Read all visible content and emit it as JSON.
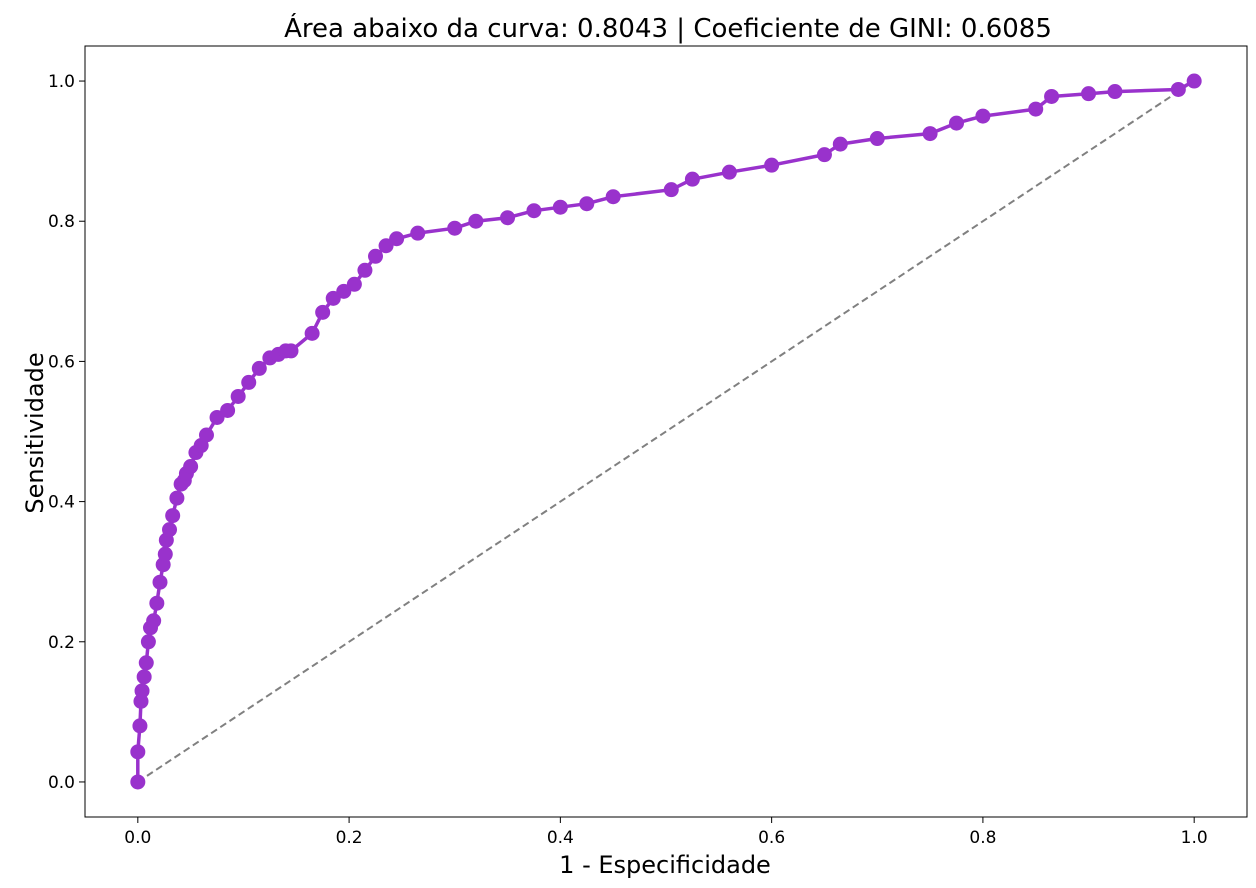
{
  "chart_data": {
    "type": "line",
    "title": "Área abaixo da curva: 0.8043 | Coeficiente de GINI: 0.6085",
    "xlabel": "1 - Especificidade",
    "ylabel": "Sensitividade",
    "xlim": [
      -0.05,
      1.05
    ],
    "ylim": [
      -0.05,
      1.05
    ],
    "xticks": [
      "0.0",
      "0.2",
      "0.4",
      "0.6",
      "0.8",
      "1.0"
    ],
    "yticks": [
      "0.0",
      "0.2",
      "0.4",
      "0.6",
      "0.8",
      "1.0"
    ],
    "grid": false,
    "colors": {
      "roc": "#9932CC",
      "reference": "#808080"
    },
    "series": [
      {
        "style": "solid-with-markers",
        "x": [
          0.0,
          0.0,
          0.002,
          0.003,
          0.004,
          0.006,
          0.008,
          0.01,
          0.012,
          0.015,
          0.018,
          0.021,
          0.024,
          0.026,
          0.027,
          0.03,
          0.033,
          0.037,
          0.041,
          0.044,
          0.046,
          0.05,
          0.055,
          0.06,
          0.065,
          0.075,
          0.085,
          0.095,
          0.105,
          0.115,
          0.125,
          0.133,
          0.14,
          0.145,
          0.165,
          0.175,
          0.185,
          0.195,
          0.205,
          0.215,
          0.225,
          0.235,
          0.245,
          0.265,
          0.3,
          0.32,
          0.35,
          0.375,
          0.4,
          0.425,
          0.45,
          0.505,
          0.525,
          0.56,
          0.6,
          0.65,
          0.665,
          0.7,
          0.75,
          0.775,
          0.8,
          0.85,
          0.865,
          0.9,
          0.925,
          0.985,
          1.0
        ],
        "y": [
          0.0,
          0.043,
          0.08,
          0.115,
          0.13,
          0.15,
          0.17,
          0.2,
          0.22,
          0.23,
          0.255,
          0.285,
          0.31,
          0.325,
          0.345,
          0.36,
          0.38,
          0.405,
          0.425,
          0.43,
          0.44,
          0.45,
          0.47,
          0.48,
          0.495,
          0.52,
          0.53,
          0.55,
          0.57,
          0.59,
          0.605,
          0.61,
          0.615,
          0.615,
          0.64,
          0.67,
          0.69,
          0.7,
          0.71,
          0.73,
          0.75,
          0.765,
          0.775,
          0.783,
          0.79,
          0.8,
          0.805,
          0.815,
          0.82,
          0.825,
          0.835,
          0.845,
          0.86,
          0.87,
          0.88,
          0.895,
          0.91,
          0.918,
          0.925,
          0.94,
          0.95,
          0.96,
          0.978,
          0.982,
          0.985,
          0.988,
          1.0
        ]
      },
      {
        "style": "dashed",
        "x": [
          0.0,
          1.0
        ],
        "y": [
          0.0,
          1.0
        ]
      }
    ]
  }
}
